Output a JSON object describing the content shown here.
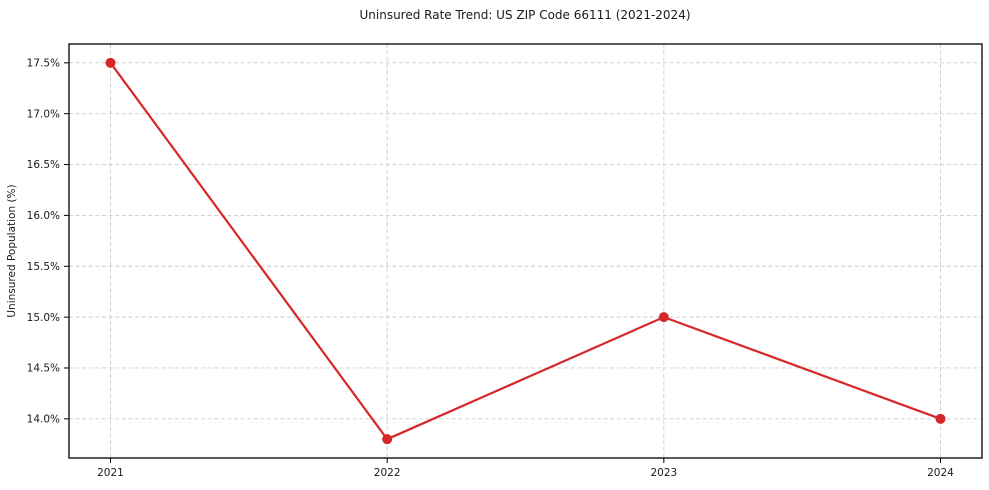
{
  "chart_data": {
    "type": "line",
    "title": "Uninsured Rate Trend: US ZIP Code 66111 (2021-2024)",
    "xlabel": "",
    "ylabel": "Uninsured Population (%)",
    "x": [
      2021,
      2022,
      2023,
      2024
    ],
    "values": [
      17.5,
      13.8,
      15.0,
      14.0
    ],
    "xticks": [
      2021,
      2022,
      2023,
      2024
    ],
    "xtick_labels": [
      "2021",
      "2022",
      "2023",
      "2024"
    ],
    "yticks": [
      14.0,
      14.5,
      15.0,
      15.5,
      16.0,
      16.5,
      17.0,
      17.5
    ],
    "ytick_labels": [
      "14.0%",
      "14.5%",
      "15.0%",
      "15.5%",
      "16.0%",
      "16.5%",
      "17.0%",
      "17.5%"
    ],
    "xlim": [
      2020.85,
      2024.15
    ],
    "ylim": [
      13.615,
      17.685
    ],
    "grid": true,
    "legend": "none",
    "line_color": "#d62728",
    "marker": "o",
    "marker_radius": 5,
    "grid_color": "#cccccc",
    "background": "#ffffff"
  }
}
